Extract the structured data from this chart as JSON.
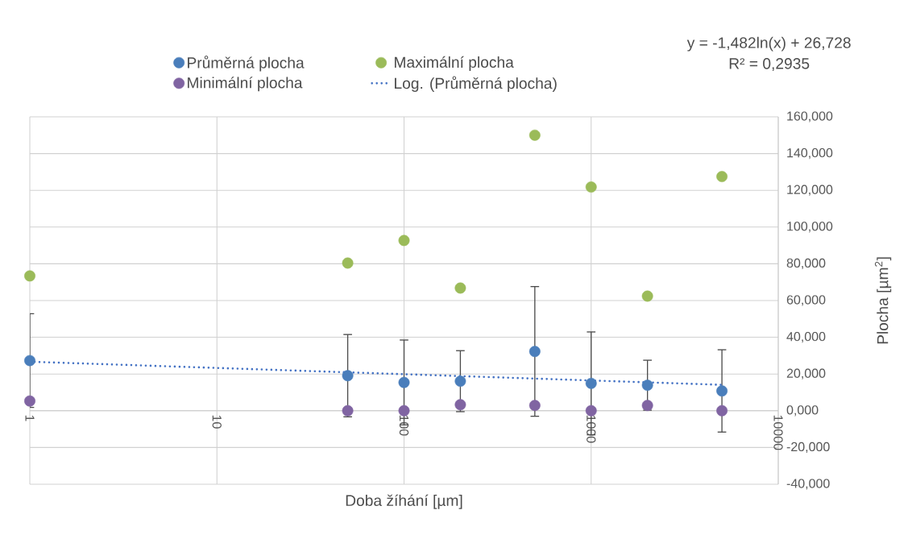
{
  "chart_data": {
    "type": "scatter",
    "xlabel": "Doba žíhání [µm]",
    "ylabel": "Plocha [µm$^{2}$]",
    "annotations": [
      "y = -1,482ln(x) + 26,728",
      "R² = 0,2935"
    ],
    "log": "x",
    "grid": true,
    "legend": "top",
    "marker": "circle",
    "xlim": [
      1,
      10000
    ],
    "xticks": [
      1,
      10,
      100,
      1000,
      10000
    ],
    "ylim": [
      -40,
      160
    ],
    "yticks": [
      {
        "value": -40,
        "label": "-40,000"
      },
      {
        "value": -20,
        "label": "-20,000"
      },
      {
        "value": 0,
        "label": "0,000"
      },
      {
        "value": 20,
        "label": "20,000"
      },
      {
        "value": 40,
        "label": "40,000"
      },
      {
        "value": 60,
        "label": "60,000"
      },
      {
        "value": 80,
        "label": "80,000"
      },
      {
        "value": 100,
        "label": "100,000"
      },
      {
        "value": 120,
        "label": "120,000"
      },
      {
        "value": 140,
        "label": "140,000"
      },
      {
        "value": 160,
        "label": "160,000"
      }
    ],
    "x": [
      1,
      50,
      100,
      200,
      500,
      1000,
      2000,
      5000
    ],
    "series": [
      {
        "name": "Průměrná plocha",
        "color": "#4a7ebb",
        "values": [
          27.3,
          19.1,
          15.4,
          16.1,
          32.3,
          14.9,
          13.9,
          10.8
        ],
        "errors": [
          25.5,
          22.4,
          23.1,
          16.6,
          35.3,
          28.0,
          13.6,
          22.4
        ]
      },
      {
        "name": "Maximální plocha",
        "color": "#9bbb59",
        "values": [
          73.4,
          80.4,
          92.7,
          66.8,
          150.0,
          121.8,
          62.4,
          127.5
        ]
      },
      {
        "name": "Minimální plocha",
        "color": "#8064a2",
        "values": [
          5.3,
          0,
          0,
          3.3,
          2.9,
          0,
          2.9,
          0
        ]
      },
      {
        "name": "Log. (Průměrná plocha)",
        "type": "line",
        "line_style": "dotted",
        "marker": "none",
        "color": "#4472c4",
        "x": [
          1,
          5000
        ],
        "values": [
          26.7,
          14.1
        ]
      }
    ]
  }
}
